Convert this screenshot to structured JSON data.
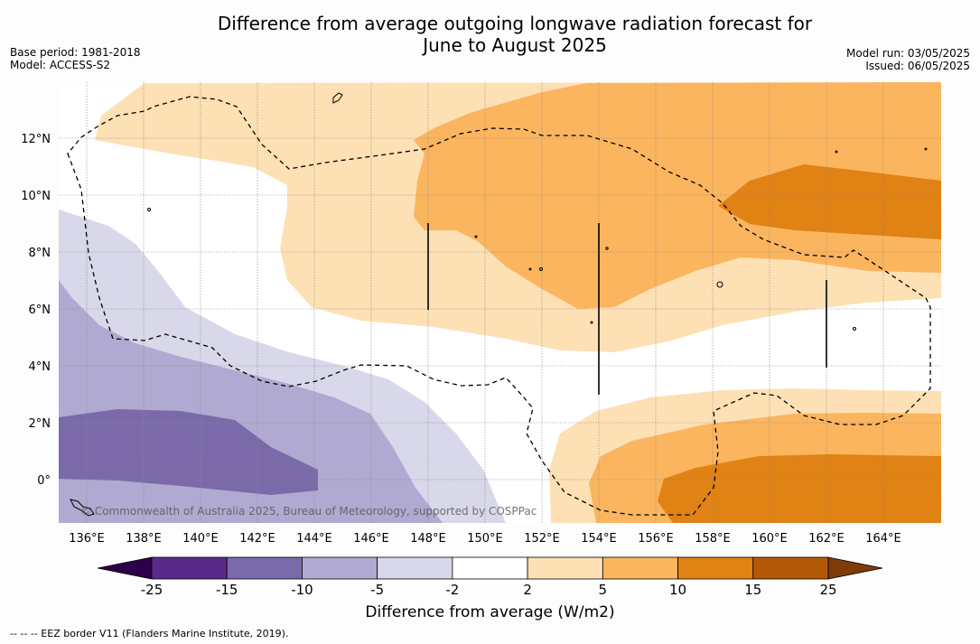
{
  "title_line1": "Difference from average outgoing longwave radiation forecast for",
  "title_line2": "June to August 2025",
  "base_period": "Base period: 1981-2018",
  "model": "Model: ACCESS-S2",
  "model_run": "Model run: 03/05/2025",
  "issued": "Issued: 06/05/2025",
  "copyright": "© Commonwealth of Australia 2025, Bureau of Meteorology, supported by COSPPac",
  "colorbar_label": "Difference from average (W/m2)",
  "footnote": "-- -- -- EEZ border V11 (Flanders Marine Institute, 2019).",
  "lon_labels": [
    "136°E",
    "138°E",
    "140°E",
    "142°E",
    "144°E",
    "146°E",
    "148°E",
    "150°E",
    "152°E",
    "154°E",
    "156°E",
    "158°E",
    "160°E",
    "162°E",
    "164°E"
  ],
  "lat_labels": [
    "12°N",
    "10°N",
    "8°N",
    "6°N",
    "4°N",
    "2°N",
    "0°"
  ],
  "colorbar": {
    "ticks": [
      "-25",
      "-15",
      "-10",
      "-5",
      "-2",
      "2",
      "5",
      "10",
      "15",
      "25"
    ],
    "colors": [
      "#5a2a8a",
      "#7b6aa9",
      "#b0a9d1",
      "#d8d8ea",
      "#ffffff",
      "#fde0b4",
      "#fbb55f",
      "#e08214",
      "#b35806"
    ],
    "under_color": "#2d004b",
    "over_color": "#7f3b08"
  },
  "legend": {
    "eez_line": "dashed black"
  }
}
